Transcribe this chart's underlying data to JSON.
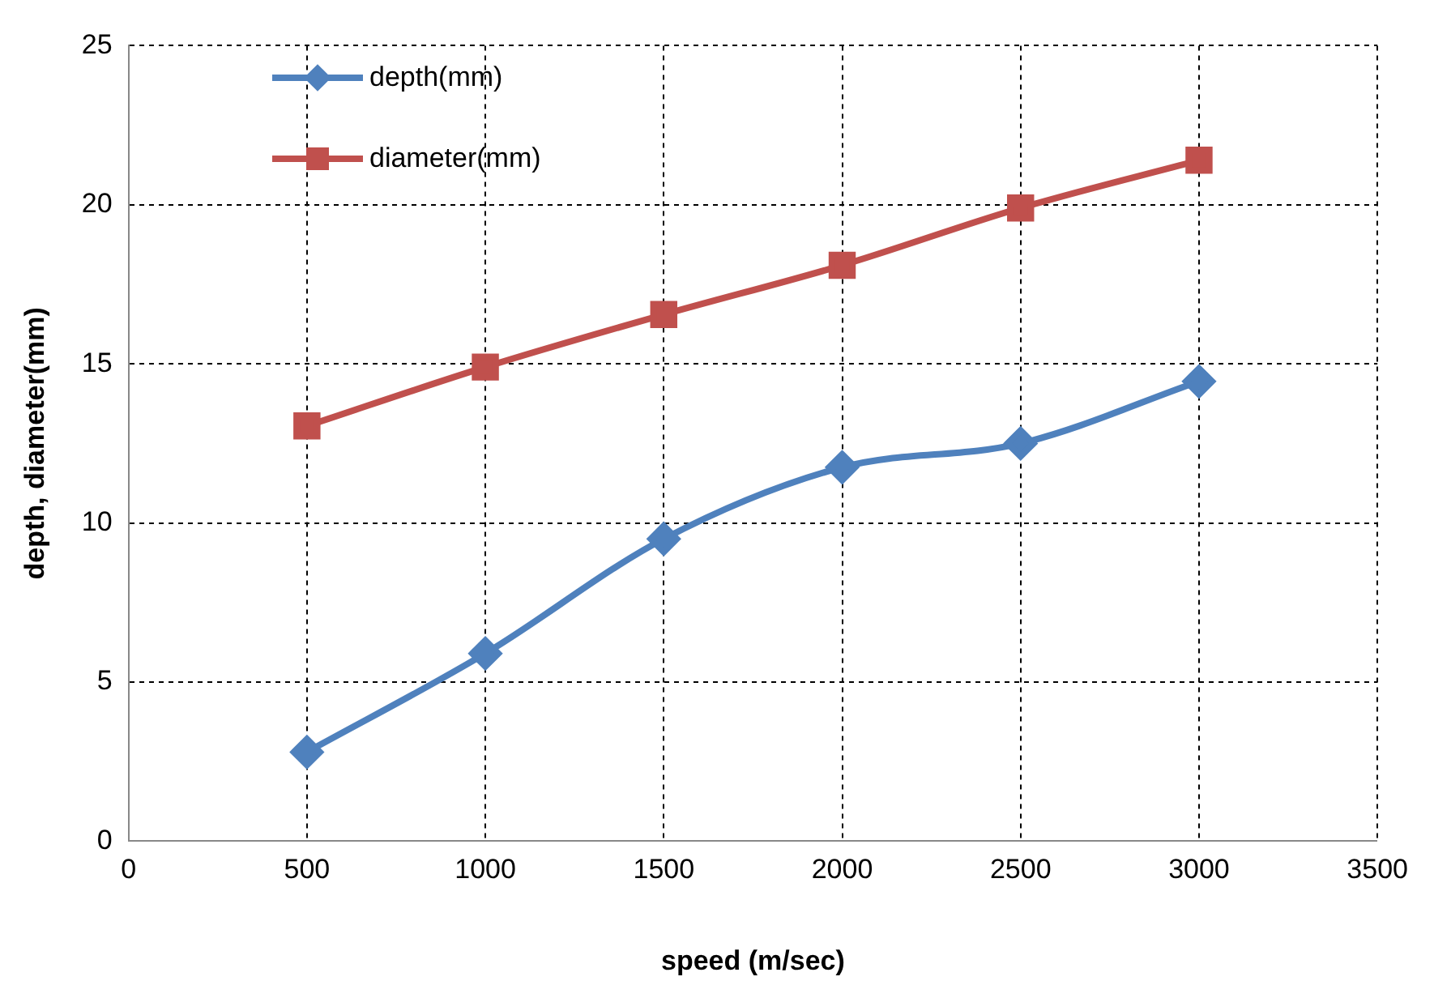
{
  "chart_data": {
    "type": "line",
    "xlabel": "speed (m/sec)",
    "ylabel": "depth, diameter(mm)",
    "x": [
      500,
      1000,
      1500,
      2000,
      2500,
      3000
    ],
    "series": [
      {
        "name": "depth(mm)",
        "color": "#4f81bd",
        "marker": "diamond",
        "values": [
          2.8,
          5.9,
          9.5,
          11.75,
          12.5,
          14.45
        ]
      },
      {
        "name": "diameter(mm)",
        "color": "#c0504d",
        "marker": "square",
        "values": [
          13.05,
          14.9,
          16.55,
          18.1,
          19.9,
          21.4
        ]
      }
    ],
    "xlim": [
      0,
      3500
    ],
    "xticks": [
      0,
      500,
      1000,
      1500,
      2000,
      2500,
      3000,
      3500
    ],
    "ylim": [
      0,
      25
    ],
    "yticks": [
      0,
      5,
      10,
      15,
      20,
      25
    ],
    "grid": true,
    "legend": "top left",
    "line_style": "solid"
  }
}
